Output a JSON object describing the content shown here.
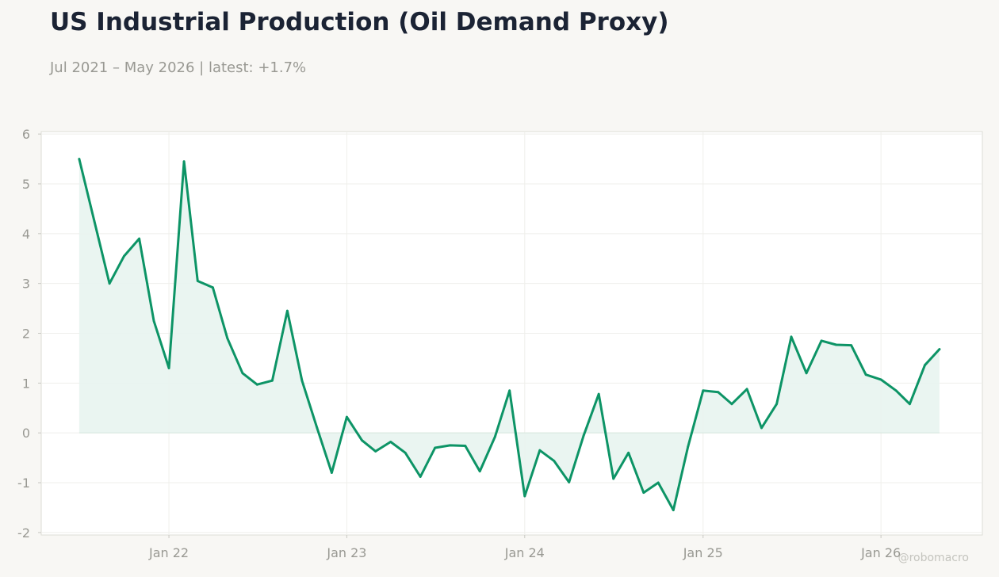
{
  "title": "US Industrial Production (Oil Demand Proxy)",
  "subtitle": "Jul 2021 – May 2026 | latest: +1.7%",
  "watermark": "@robomacro",
  "colors": {
    "background": "#f8f7f4",
    "line": "#0d9466",
    "fill": "#e8f4ef",
    "title": "#1b2334",
    "muted": "#999993"
  },
  "chart_data": {
    "type": "area",
    "title": "US Industrial Production (Oil Demand Proxy)",
    "xlabel": "",
    "ylabel": "",
    "ylim": [
      -2.05,
      6.05
    ],
    "xlim": [
      "2021-04-14",
      "2026-07-28"
    ],
    "y_ticks": [
      -2,
      -1,
      0,
      1,
      2,
      3,
      4,
      5,
      6
    ],
    "y_tick_labels": [
      "-2",
      "-1",
      "0",
      "1",
      "2",
      "3",
      "4",
      "5",
      "6"
    ],
    "x_ticks": [
      "2022-01-01",
      "2023-01-01",
      "2024-01-01",
      "2025-01-01",
      "2026-01-01"
    ],
    "x_tick_labels": [
      "Jan 22",
      "Jan 23",
      "Jan 24",
      "Jan 25",
      "Jan 26"
    ],
    "grid": true,
    "legend": "none",
    "series": [
      {
        "x": [
          "2021-07-01",
          "2021-08-01",
          "2021-09-01",
          "2021-10-01",
          "2021-11-01",
          "2021-12-01",
          "2022-01-01",
          "2022-02-01",
          "2022-03-01",
          "2022-04-01",
          "2022-05-01",
          "2022-06-01",
          "2022-07-01",
          "2022-08-01",
          "2022-09-01",
          "2022-10-01",
          "2022-11-01",
          "2022-12-01",
          "2023-01-01",
          "2023-02-01",
          "2023-03-01",
          "2023-04-01",
          "2023-05-01",
          "2023-06-01",
          "2023-07-01",
          "2023-08-01",
          "2023-09-01",
          "2023-10-01",
          "2023-11-01",
          "2023-12-01",
          "2024-01-01",
          "2024-02-01",
          "2024-03-01",
          "2024-04-01",
          "2024-05-01",
          "2024-06-01",
          "2024-07-01",
          "2024-08-01",
          "2024-09-01",
          "2024-10-01",
          "2024-11-01",
          "2024-12-01",
          "2025-01-01",
          "2025-02-01",
          "2025-03-01",
          "2025-04-01",
          "2025-05-01",
          "2025-06-01",
          "2025-07-01",
          "2025-08-01",
          "2025-09-01",
          "2025-10-01",
          "2025-11-01",
          "2025-12-01",
          "2026-01-01",
          "2026-02-01",
          "2026-03-01",
          "2026-04-01",
          "2026-05-01"
        ],
        "values": [
          5.5,
          4.25,
          3.0,
          3.55,
          3.9,
          2.25,
          1.3,
          5.45,
          3.05,
          2.92,
          1.9,
          1.2,
          0.97,
          1.05,
          2.45,
          1.05,
          0.1,
          -0.8,
          0.32,
          -0.15,
          -0.37,
          -0.18,
          -0.4,
          -0.88,
          -0.3,
          -0.25,
          -0.26,
          -0.77,
          -0.08,
          0.85,
          -1.27,
          -0.35,
          -0.56,
          -0.99,
          -0.05,
          0.78,
          -0.92,
          -0.4,
          -1.2,
          -1.0,
          -1.55,
          -0.28,
          0.85,
          0.82,
          0.58,
          0.88,
          0.1,
          0.58,
          1.93,
          1.2,
          1.85,
          1.77,
          1.76,
          1.17,
          1.07,
          0.85,
          0.58,
          1.36,
          1.68
        ]
      }
    ]
  }
}
